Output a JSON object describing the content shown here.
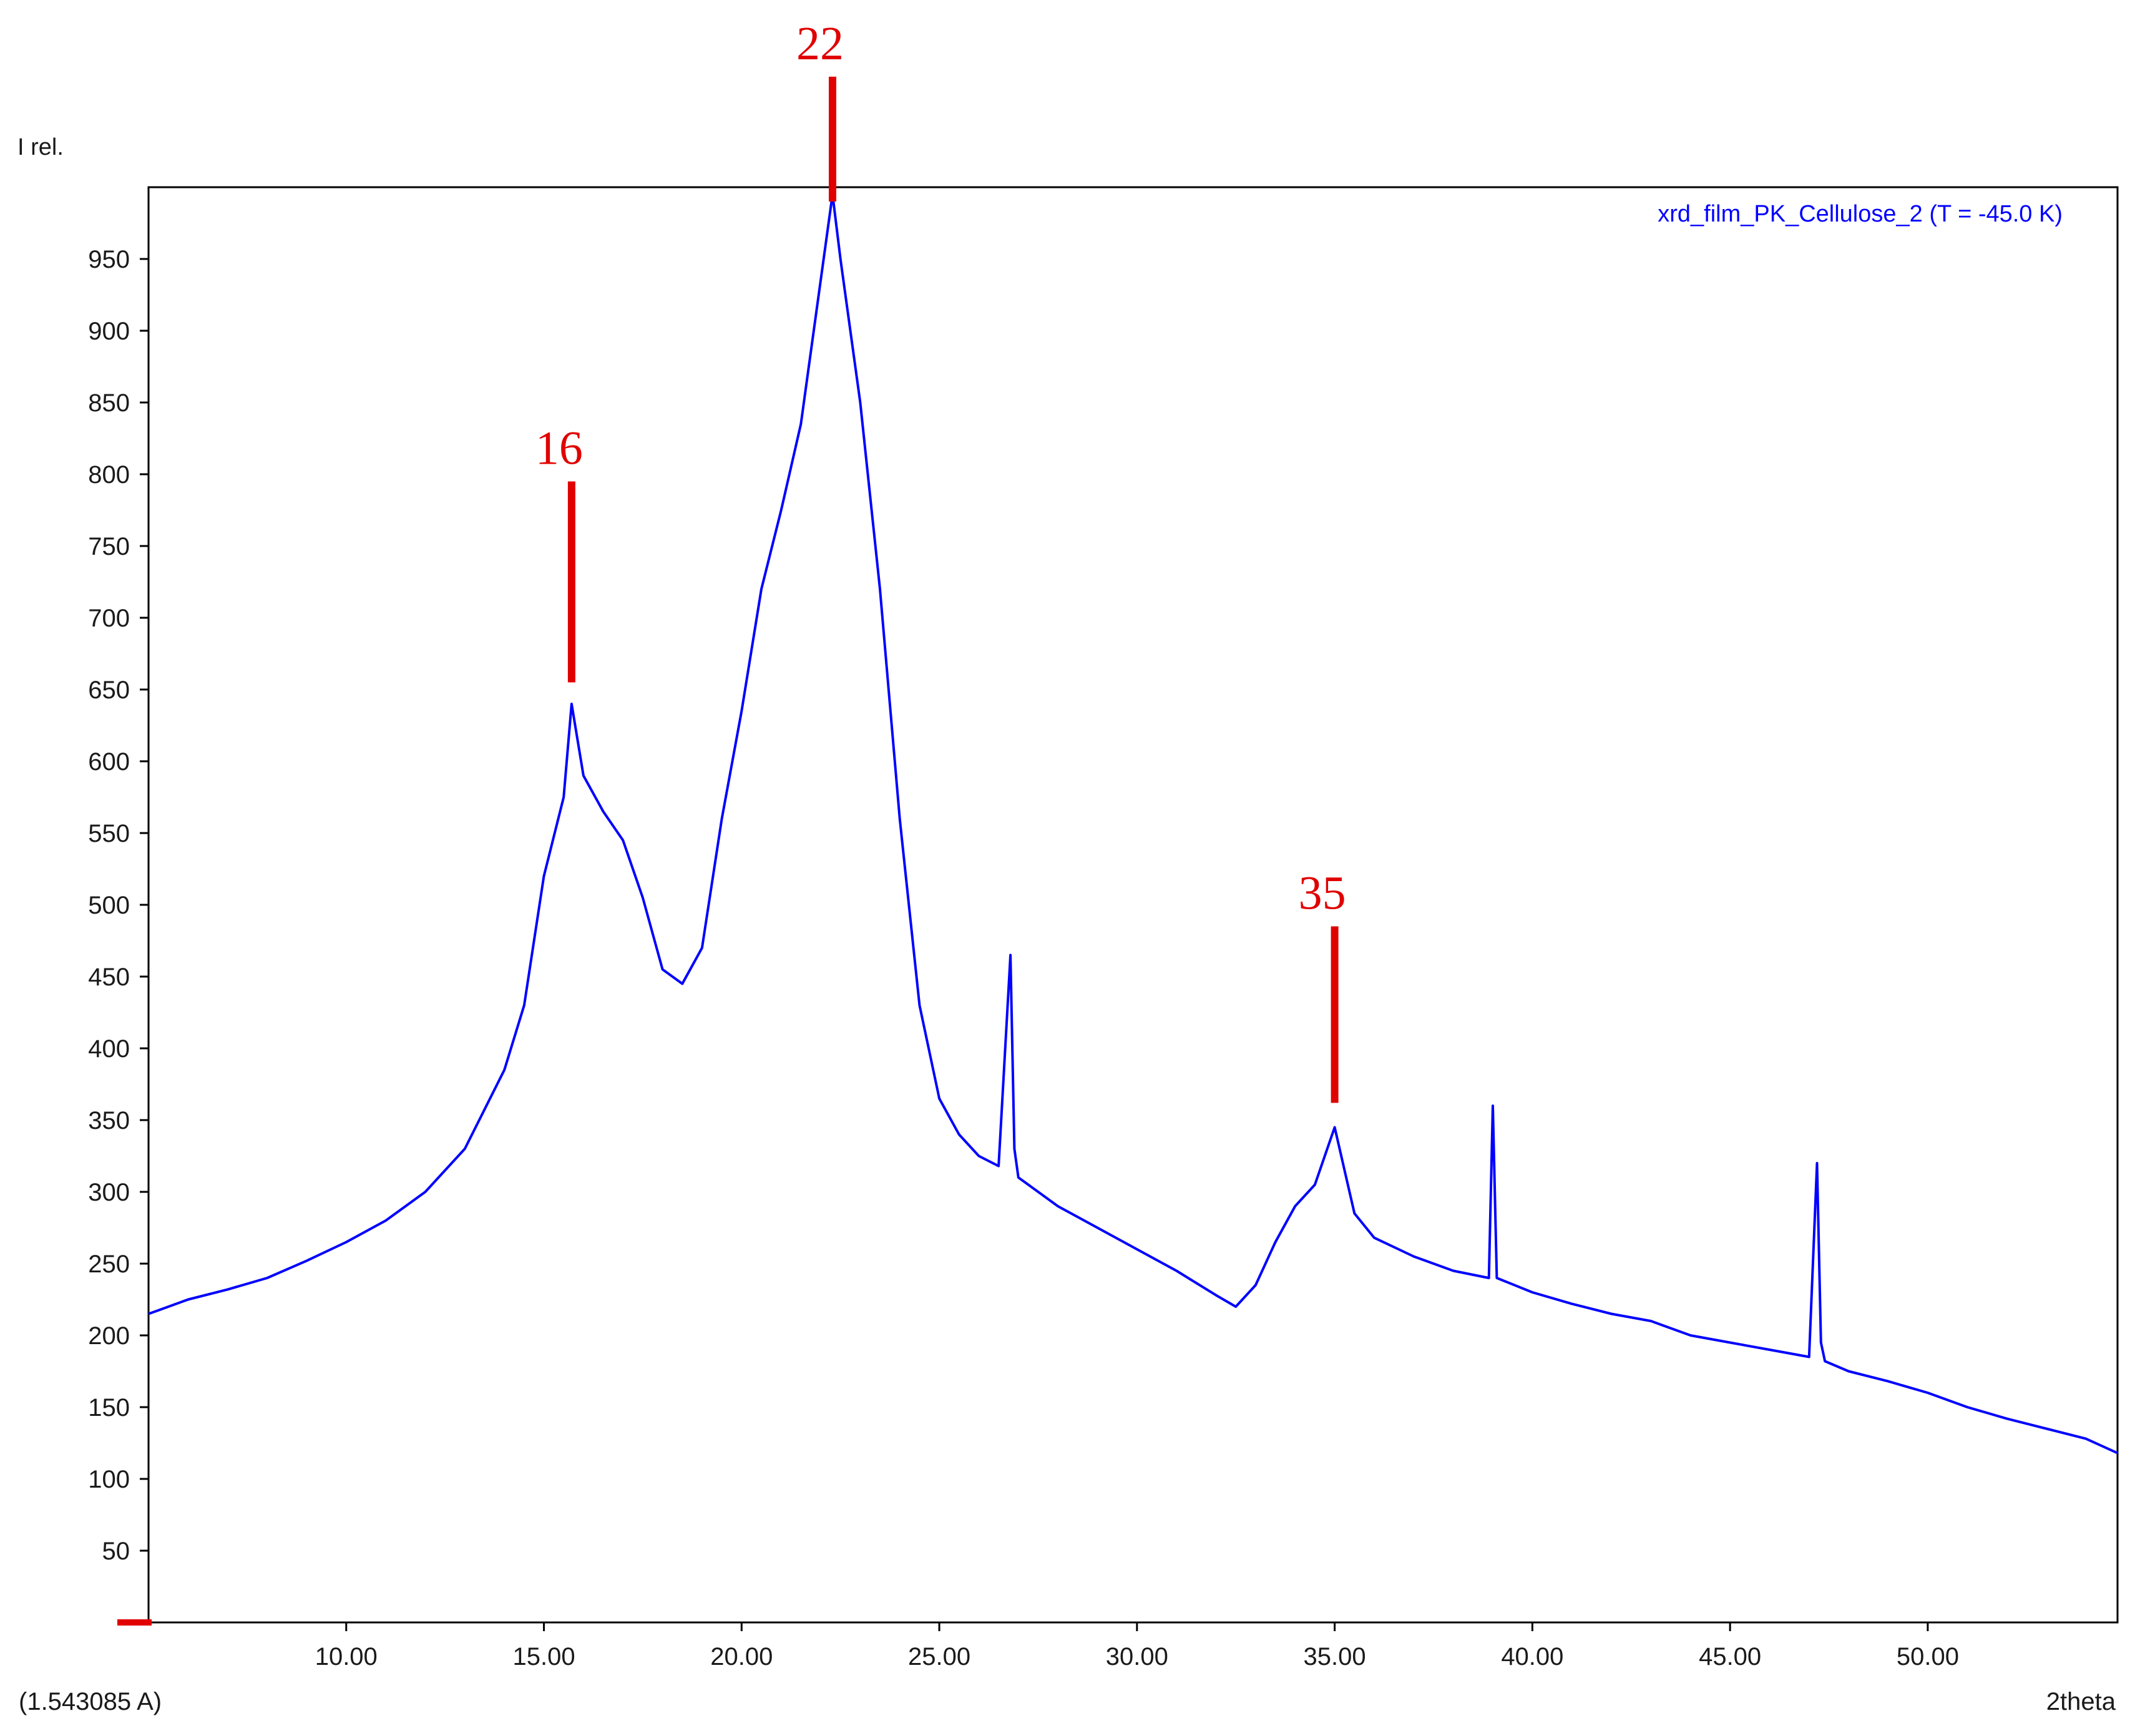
{
  "chart_data": {
    "type": "line",
    "title": "",
    "xlabel": "2theta",
    "ylabel": "I rel.",
    "wavelength_label": "(1.543085 A)",
    "xlim": [
      5.0,
      54.8
    ],
    "ylim": [
      0,
      1000
    ],
    "x_ticks": [
      10,
      15,
      20,
      25,
      30,
      35,
      40,
      45,
      50
    ],
    "x_tick_labels": [
      "10.00",
      "15.00",
      "20.00",
      "25.00",
      "30.00",
      "35.00",
      "40.00",
      "45.00",
      "50.00"
    ],
    "y_ticks": [
      50,
      100,
      150,
      200,
      250,
      300,
      350,
      400,
      450,
      500,
      550,
      600,
      650,
      700,
      750,
      800,
      850,
      900,
      950
    ],
    "y_tick_labels": [
      "50",
      "100",
      "150",
      "200",
      "250",
      "300",
      "350",
      "400",
      "450",
      "500",
      "550",
      "600",
      "650",
      "700",
      "750",
      "800",
      "850",
      "900",
      "950"
    ],
    "grid": false,
    "legend": {
      "position": "top-right"
    },
    "series": [
      {
        "name": "xrd_film_PK_Cellulose_2 (T = -45.0 K)",
        "color": "#0000ff",
        "x": [
          5.0,
          6.0,
          7.0,
          8.0,
          9.0,
          10.0,
          11.0,
          12.0,
          13.0,
          14.0,
          14.5,
          15.0,
          15.5,
          15.7,
          16.0,
          16.5,
          17.0,
          17.5,
          18.0,
          18.5,
          19.0,
          19.5,
          20.0,
          20.5,
          21.0,
          21.5,
          22.0,
          22.3,
          22.5,
          23.0,
          23.5,
          24.0,
          24.5,
          25.0,
          25.5,
          26.0,
          26.5,
          26.8,
          26.9,
          27.0,
          27.5,
          28.0,
          29.0,
          30.0,
          31.0,
          32.0,
          32.5,
          33.0,
          33.5,
          34.0,
          34.5,
          35.0,
          35.5,
          36.0,
          37.0,
          38.0,
          38.9,
          39.0,
          39.1,
          40.0,
          41.0,
          42.0,
          43.0,
          44.0,
          45.0,
          46.0,
          47.0,
          47.2,
          47.3,
          47.4,
          48.0,
          49.0,
          50.0,
          51.0,
          52.0,
          53.0,
          54.0,
          54.8
        ],
        "y": [
          215,
          225,
          232,
          240,
          252,
          265,
          280,
          300,
          330,
          385,
          430,
          520,
          575,
          640,
          590,
          565,
          545,
          505,
          455,
          445,
          470,
          560,
          635,
          720,
          775,
          835,
          935,
          995,
          950,
          850,
          720,
          560,
          430,
          365,
          340,
          325,
          318,
          465,
          330,
          310,
          300,
          290,
          275,
          260,
          245,
          228,
          220,
          235,
          265,
          290,
          305,
          345,
          285,
          268,
          255,
          245,
          240,
          360,
          240,
          230,
          222,
          215,
          210,
          200,
          195,
          190,
          185,
          320,
          195,
          182,
          175,
          168,
          160,
          150,
          142,
          135,
          128,
          118
        ]
      }
    ],
    "annotations": [
      {
        "label": "16",
        "x": 15.7,
        "y_low": 655,
        "y_high": 795
      },
      {
        "label": "22",
        "x": 22.3,
        "y_low": 990,
        "y_high": 1077
      },
      {
        "label": "35",
        "x": 35.0,
        "y_low": 362,
        "y_high": 485
      }
    ],
    "annotation_color": "#e00000"
  }
}
